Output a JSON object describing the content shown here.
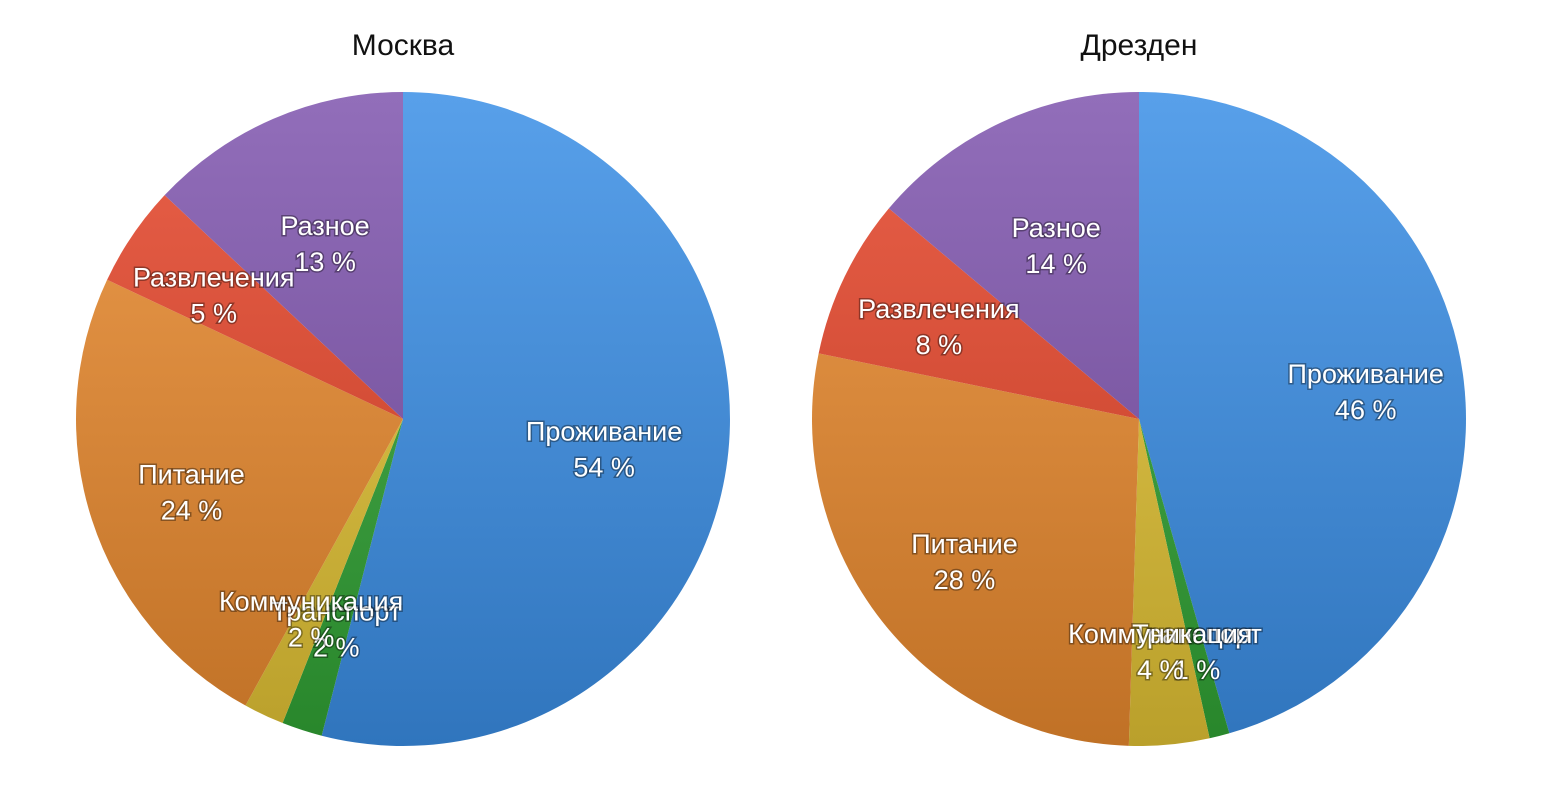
{
  "chart_data": [
    {
      "type": "pie",
      "title": "Москва",
      "slices": [
        {
          "label": "Проживание",
          "value": 54,
          "value_text": "54 %",
          "color": "#3B8FE6"
        },
        {
          "label": "Транспорт",
          "value": 2,
          "value_text": "2 %",
          "color": "#31A335"
        },
        {
          "label": "Коммуникация",
          "value": 2,
          "value_text": "2 %",
          "color": "#E3C334"
        },
        {
          "label": "Питание",
          "value": 24,
          "value_text": "24 %",
          "color": "#EA8A2E"
        },
        {
          "label": "Развлечения",
          "value": 5,
          "value_text": "5 %",
          "color": "#E6452A"
        },
        {
          "label": "Разное",
          "value": 13,
          "value_text": "13 %",
          "color": "#7F54AE"
        }
      ]
    },
    {
      "type": "pie",
      "title": "Дрезден",
      "slices": [
        {
          "label": "Проживание",
          "value": 46,
          "value_text": "46 %",
          "color": "#3B8FE6"
        },
        {
          "label": "Транспорт",
          "value": 1,
          "value_text": "1 %",
          "color": "#31A335"
        },
        {
          "label": "Коммуникация",
          "value": 4,
          "value_text": "4 %",
          "color": "#E3C334"
        },
        {
          "label": "Питание",
          "value": 28,
          "value_text": "28 %",
          "color": "#EA8A2E"
        },
        {
          "label": "Развлечения",
          "value": 8,
          "value_text": "8 %",
          "color": "#E6452A"
        },
        {
          "label": "Разное",
          "value": 14,
          "value_text": "14 %",
          "color": "#7F54AE"
        }
      ]
    }
  ]
}
